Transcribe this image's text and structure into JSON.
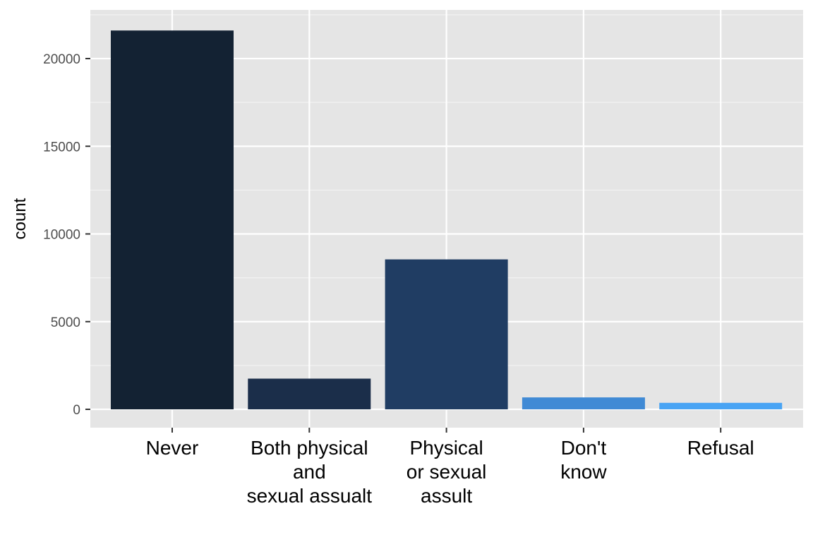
{
  "chart_data": {
    "type": "bar",
    "title": "",
    "xlabel": "",
    "ylabel": "count",
    "categories": [
      [
        "Never"
      ],
      [
        "Both physical",
        "and",
        "sexual assualt"
      ],
      [
        "Physical",
        "or sexual",
        "assult"
      ],
      [
        "Don't",
        "know"
      ],
      [
        "Refusal"
      ]
    ],
    "values": [
      21600,
      1750,
      8550,
      680,
      370
    ],
    "colors": [
      "#132233",
      "#1b2e4a",
      "#203d63",
      "#408ad5",
      "#49a4f4"
    ],
    "ylim": [
      0,
      22700
    ],
    "yticks": [
      0,
      5000,
      10000,
      15000,
      20000
    ],
    "grid": true,
    "legend": "none"
  }
}
